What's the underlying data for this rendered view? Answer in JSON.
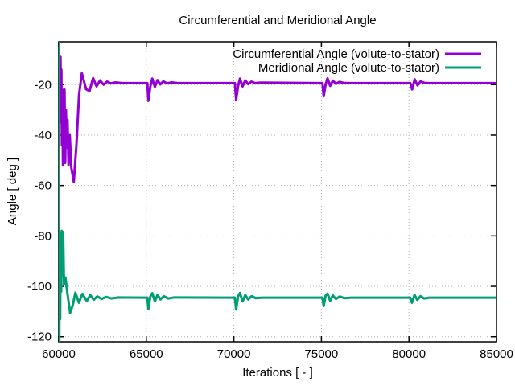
{
  "chart_data": {
    "type": "line",
    "title": "Circumferential and Meridional Angle",
    "xlabel": "Iterations [ - ]",
    "ylabel": "Angle [ deg ]",
    "xlim": [
      60000,
      85000
    ],
    "ylim": [
      -122,
      -3
    ],
    "xticks": [
      60000,
      65000,
      70000,
      75000,
      80000,
      85000
    ],
    "yticks": [
      -120,
      -100,
      -80,
      -60,
      -40,
      -20
    ],
    "grid": true,
    "grid_style": "dotted",
    "legend_position": "top-right-inside",
    "background_color": "#ffffff",
    "border_color": "#000000",
    "series": [
      {
        "name": "Circumferential Angle (volute-to-stator)",
        "color": "#9400d3",
        "settled_value": -19.5,
        "points": [
          [
            60100,
            -9
          ],
          [
            60130,
            -35
          ],
          [
            60150,
            -14
          ],
          [
            60180,
            -44
          ],
          [
            60210,
            -22
          ],
          [
            60240,
            -52
          ],
          [
            60270,
            -24
          ],
          [
            60300,
            -38
          ],
          [
            60330,
            -22
          ],
          [
            60370,
            -51
          ],
          [
            60410,
            -30
          ],
          [
            60450,
            -45
          ],
          [
            60500,
            -34
          ],
          [
            60560,
            -52
          ],
          [
            60630,
            -40
          ],
          [
            60720,
            -53
          ],
          [
            60860,
            -58.5
          ],
          [
            61010,
            -44
          ],
          [
            61160,
            -24
          ],
          [
            61320,
            -15.5
          ],
          [
            61560,
            -21.8
          ],
          [
            61760,
            -22.5
          ],
          [
            61960,
            -17.4
          ],
          [
            62160,
            -20.7
          ],
          [
            62360,
            -18.3
          ],
          [
            62560,
            -20
          ],
          [
            62760,
            -18.8
          ],
          [
            62960,
            -19.5
          ],
          [
            63250,
            -19.1
          ],
          [
            63600,
            -19.4
          ],
          [
            64950,
            -19.4
          ],
          [
            65060,
            -19.4
          ],
          [
            65120,
            -26.4
          ],
          [
            65230,
            -20.8
          ],
          [
            65340,
            -17.6
          ],
          [
            65490,
            -20.9
          ],
          [
            65640,
            -18.2
          ],
          [
            65800,
            -19.9
          ],
          [
            65970,
            -18.7
          ],
          [
            66180,
            -19.5
          ],
          [
            66450,
            -19.1
          ],
          [
            66800,
            -19.4
          ],
          [
            69950,
            -19.4
          ],
          [
            70060,
            -19.4
          ],
          [
            70130,
            -26
          ],
          [
            70240,
            -20.6
          ],
          [
            70350,
            -17.6
          ],
          [
            70500,
            -20.7
          ],
          [
            70650,
            -18.3
          ],
          [
            70820,
            -19.8
          ],
          [
            71000,
            -18.8
          ],
          [
            71220,
            -19.4
          ],
          [
            71550,
            -19.2
          ],
          [
            74950,
            -19.4
          ],
          [
            75060,
            -19.4
          ],
          [
            75130,
            -24.6
          ],
          [
            75240,
            -19.9
          ],
          [
            75350,
            -17.5
          ],
          [
            75500,
            -20.5
          ],
          [
            75650,
            -18.4
          ],
          [
            75830,
            -19.7
          ],
          [
            76030,
            -18.9
          ],
          [
            76260,
            -19.3
          ],
          [
            76650,
            -19.4
          ],
          [
            79950,
            -19.4
          ],
          [
            80080,
            -19.4
          ],
          [
            80180,
            -21.9
          ],
          [
            80330,
            -17.9
          ],
          [
            80490,
            -20.3
          ],
          [
            80670,
            -18.7
          ],
          [
            80880,
            -19.3
          ],
          [
            81200,
            -19.4
          ],
          [
            85000,
            -19.4
          ]
        ]
      },
      {
        "name": "Meridional Angle (volute-to-stator)",
        "color": "#009e73",
        "settled_value": -104.5,
        "points": [
          [
            60000,
            -3
          ],
          [
            60030,
            -121.5
          ],
          [
            60060,
            -90
          ],
          [
            60080,
            -113
          ],
          [
            60110,
            -79
          ],
          [
            60140,
            -102
          ],
          [
            60170,
            -78
          ],
          [
            60210,
            -96
          ],
          [
            60250,
            -78.5
          ],
          [
            60300,
            -99
          ],
          [
            60380,
            -96.5
          ],
          [
            60480,
            -102
          ],
          [
            60650,
            -110.5
          ],
          [
            60800,
            -107.5
          ],
          [
            60950,
            -102.5
          ],
          [
            61150,
            -106.5
          ],
          [
            61350,
            -103
          ],
          [
            61600,
            -105.8
          ],
          [
            61800,
            -103.5
          ],
          [
            62000,
            -105.3
          ],
          [
            62200,
            -104
          ],
          [
            62450,
            -105
          ],
          [
            62700,
            -104.2
          ],
          [
            63000,
            -104.8
          ],
          [
            63400,
            -104.4
          ],
          [
            64950,
            -104.5
          ],
          [
            65060,
            -104.5
          ],
          [
            65120,
            -109
          ],
          [
            65230,
            -104
          ],
          [
            65340,
            -102.7
          ],
          [
            65490,
            -106
          ],
          [
            65640,
            -103.4
          ],
          [
            65810,
            -105.2
          ],
          [
            66000,
            -103.9
          ],
          [
            66250,
            -104.8
          ],
          [
            66600,
            -104.4
          ],
          [
            69950,
            -104.5
          ],
          [
            70060,
            -104.5
          ],
          [
            70130,
            -109.2
          ],
          [
            70240,
            -104
          ],
          [
            70350,
            -102.6
          ],
          [
            70500,
            -106
          ],
          [
            70650,
            -103.5
          ],
          [
            70820,
            -105.2
          ],
          [
            71020,
            -103.9
          ],
          [
            71250,
            -104.7
          ],
          [
            71600,
            -104.5
          ],
          [
            74950,
            -104.5
          ],
          [
            75060,
            -104.5
          ],
          [
            75130,
            -107.8
          ],
          [
            75240,
            -103.7
          ],
          [
            75350,
            -102.9
          ],
          [
            75500,
            -105.7
          ],
          [
            75650,
            -103.6
          ],
          [
            75830,
            -105
          ],
          [
            76050,
            -104
          ],
          [
            76300,
            -104.7
          ],
          [
            76700,
            -104.5
          ],
          [
            79950,
            -104.5
          ],
          [
            80080,
            -104.5
          ],
          [
            80170,
            -106.5
          ],
          [
            80320,
            -103.4
          ],
          [
            80480,
            -105.4
          ],
          [
            80660,
            -103.9
          ],
          [
            80870,
            -104.8
          ],
          [
            81150,
            -104.5
          ],
          [
            85000,
            -104.5
          ]
        ]
      }
    ]
  }
}
